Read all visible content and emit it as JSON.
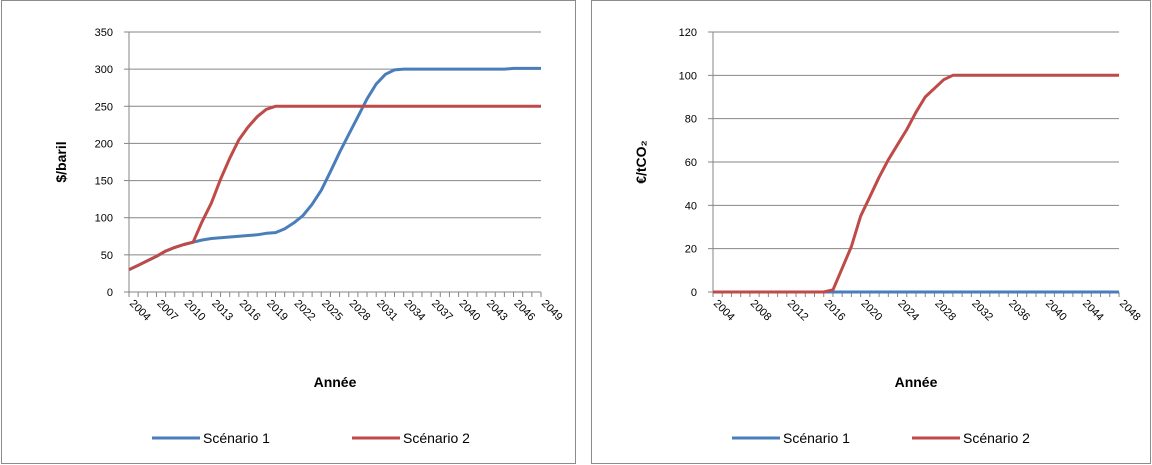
{
  "charts": [
    {
      "type": "line",
      "title": "",
      "xlabel": "Année",
      "ylabel": "$/baril",
      "ylim": [
        0,
        350
      ],
      "ystep": 50,
      "grid": true,
      "legend_position": "bottom",
      "x": [
        2004,
        2005,
        2006,
        2007,
        2008,
        2009,
        2010,
        2011,
        2012,
        2013,
        2014,
        2015,
        2016,
        2017,
        2018,
        2019,
        2020,
        2021,
        2022,
        2023,
        2024,
        2025,
        2026,
        2027,
        2028,
        2029,
        2030,
        2031,
        2032,
        2033,
        2034,
        2035,
        2036,
        2037,
        2038,
        2039,
        2040,
        2041,
        2042,
        2043,
        2044,
        2045,
        2046,
        2047,
        2048,
        2049
      ],
      "x_tick_labels": [
        "2004",
        "2007",
        "2010",
        "2013",
        "2016",
        "2019",
        "2022",
        "2025",
        "2028",
        "2031",
        "2034",
        "2037",
        "2040",
        "2043",
        "2046",
        "2049"
      ],
      "series": [
        {
          "name": "Scénario 1",
          "color": "#4a7ebb",
          "values": [
            30,
            36,
            42,
            48,
            55,
            60,
            64,
            67,
            70,
            72,
            73,
            74,
            75,
            76,
            77,
            79,
            80,
            85,
            93,
            103,
            118,
            137,
            162,
            188,
            212,
            236,
            260,
            280,
            293,
            299,
            300,
            300,
            300,
            300,
            300,
            300,
            300,
            300,
            300,
            300,
            300,
            300,
            301,
            301,
            301,
            301
          ]
        },
        {
          "name": "Scénario 2",
          "color": "#be4b48",
          "values": [
            30,
            36,
            42,
            48,
            55,
            60,
            64,
            67,
            95,
            120,
            152,
            180,
            205,
            222,
            236,
            246,
            250,
            250,
            250,
            250,
            250,
            250,
            250,
            250,
            250,
            250,
            250,
            250,
            250,
            250,
            250,
            250,
            250,
            250,
            250,
            250,
            250,
            250,
            250,
            250,
            250,
            250,
            250,
            250,
            250,
            250
          ]
        }
      ]
    },
    {
      "type": "line",
      "title": "",
      "xlabel": "Année",
      "ylabel": "€/tCO₂",
      "ylim": [
        0,
        120
      ],
      "ystep": 20,
      "grid": true,
      "legend_position": "bottom",
      "x": [
        2004,
        2005,
        2006,
        2007,
        2008,
        2009,
        2010,
        2011,
        2012,
        2013,
        2014,
        2015,
        2016,
        2017,
        2018,
        2019,
        2020,
        2021,
        2022,
        2023,
        2024,
        2025,
        2026,
        2027,
        2028,
        2029,
        2030,
        2031,
        2032,
        2033,
        2034,
        2035,
        2036,
        2037,
        2038,
        2039,
        2040,
        2041,
        2042,
        2043,
        2044,
        2045,
        2046,
        2047,
        2048
      ],
      "x_tick_labels": [
        "2004",
        "2008",
        "2012",
        "2016",
        "2020",
        "2024",
        "2028",
        "2032",
        "2036",
        "2040",
        "2044",
        "2048"
      ],
      "series": [
        {
          "name": "Scénario 1",
          "color": "#4a7ebb",
          "values": [
            0,
            0,
            0,
            0,
            0,
            0,
            0,
            0,
            0,
            0,
            0,
            0,
            0,
            0,
            0,
            0,
            0,
            0,
            0,
            0,
            0,
            0,
            0,
            0,
            0,
            0,
            0,
            0,
            0,
            0,
            0,
            0,
            0,
            0,
            0,
            0,
            0,
            0,
            0,
            0,
            0,
            0,
            0,
            0,
            0
          ]
        },
        {
          "name": "Scénario 2",
          "color": "#be4b48",
          "values": [
            0,
            0,
            0,
            0,
            0,
            0,
            0,
            0,
            0,
            0,
            0,
            0,
            0,
            1,
            11,
            21,
            35,
            44,
            53,
            61,
            68,
            75,
            83,
            90,
            94,
            98,
            100,
            100,
            100,
            100,
            100,
            100,
            100,
            100,
            100,
            100,
            100,
            100,
            100,
            100,
            100,
            100,
            100,
            100,
            100
          ]
        }
      ]
    }
  ]
}
